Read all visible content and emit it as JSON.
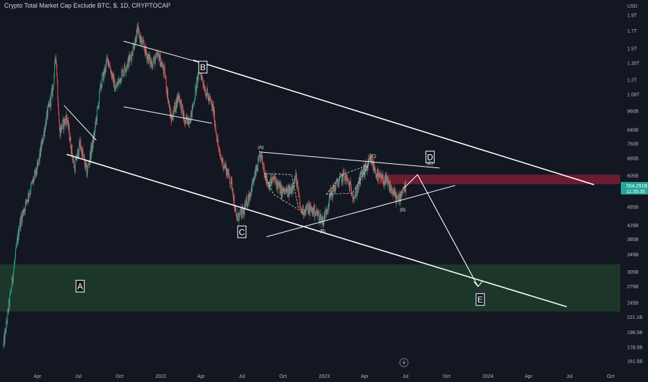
{
  "header": {
    "title": "Crypto Total Market Cap Exclude BTC, $, 1D, CRYPTOCAP"
  },
  "colors": {
    "background": "#131722",
    "bull_candle": "#26a69a",
    "bear_candle": "#ef5350",
    "red_zone": "#7a1f33",
    "green_zone": "#1e3d2a",
    "drawing": "#ffffff"
  },
  "chart_data": {
    "type": "candlestick",
    "y_scale": "log",
    "ylim": [
      155,
      2100
    ],
    "currency_label": "USD",
    "y_ticks": [
      {
        "label": "1.9T",
        "value": 1900
      },
      {
        "label": "1.7T",
        "value": 1700
      },
      {
        "label": "1.5T",
        "value": 1500
      },
      {
        "label": "1.35T",
        "value": 1350
      },
      {
        "label": "1.2T",
        "value": 1200
      },
      {
        "label": "1.08T",
        "value": 1080
      },
      {
        "label": "960B",
        "value": 960
      },
      {
        "label": "840B",
        "value": 840
      },
      {
        "label": "760B",
        "value": 760
      },
      {
        "label": "685B",
        "value": 685
      },
      {
        "label": "605B",
        "value": 605
      },
      {
        "label": "485B",
        "value": 485
      },
      {
        "label": "425B",
        "value": 425
      },
      {
        "label": "385B",
        "value": 385
      },
      {
        "label": "345B",
        "value": 345
      },
      {
        "label": "305B",
        "value": 305
      },
      {
        "label": "275B",
        "value": 275
      },
      {
        "label": "245B",
        "value": 245
      },
      {
        "label": "221.1B",
        "value": 221.1
      },
      {
        "label": "198.5B",
        "value": 198.5
      },
      {
        "label": "178.5B",
        "value": 178.5
      },
      {
        "label": "161.5B",
        "value": 161.5
      }
    ],
    "x_ticks": [
      {
        "label": "Apr",
        "date": "2021-04-01"
      },
      {
        "label": "Jul",
        "date": "2021-07-01"
      },
      {
        "label": "Oct",
        "date": "2021-10-01"
      },
      {
        "label": "2022",
        "date": "2022-01-01"
      },
      {
        "label": "Apr",
        "date": "2022-04-01"
      },
      {
        "label": "Jul",
        "date": "2022-07-01"
      },
      {
        "label": "Oct",
        "date": "2022-10-01"
      },
      {
        "label": "2023",
        "date": "2023-01-01"
      },
      {
        "label": "Apr",
        "date": "2023-04-01"
      },
      {
        "label": "Jul",
        "date": "2023-07-01"
      },
      {
        "label": "Oct",
        "date": "2023-10-01"
      },
      {
        "label": "2024",
        "date": "2024-01-01"
      },
      {
        "label": "Apr",
        "date": "2024-04-01"
      },
      {
        "label": "Jul",
        "date": "2024-07-01"
      },
      {
        "label": "Oct",
        "date": "2024-10-01"
      }
    ],
    "price_series": [
      [
        "2021-01-15",
        180
      ],
      [
        "2021-02-01",
        270
      ],
      [
        "2021-02-20",
        430
      ],
      [
        "2021-03-10",
        520
      ],
      [
        "2021-04-01",
        640
      ],
      [
        "2021-04-20",
        900
      ],
      [
        "2021-05-05",
        1120
      ],
      [
        "2021-05-12",
        1450
      ],
      [
        "2021-05-20",
        830
      ],
      [
        "2021-06-05",
        920
      ],
      [
        "2021-06-22",
        640
      ],
      [
        "2021-07-05",
        760
      ],
      [
        "2021-07-20",
        620
      ],
      [
        "2021-08-05",
        800
      ],
      [
        "2021-08-20",
        1150
      ],
      [
        "2021-09-05",
        1400
      ],
      [
        "2021-09-22",
        1120
      ],
      [
        "2021-10-05",
        1250
      ],
      [
        "2021-10-25",
        1400
      ],
      [
        "2021-11-10",
        1700
      ],
      [
        "2021-11-25",
        1500
      ],
      [
        "2021-12-10",
        1350
      ],
      [
        "2021-12-28",
        1420
      ],
      [
        "2022-01-10",
        1250
      ],
      [
        "2022-01-24",
        900
      ],
      [
        "2022-02-10",
        1080
      ],
      [
        "2022-02-24",
        880
      ],
      [
        "2022-03-10",
        930
      ],
      [
        "2022-03-28",
        1300
      ],
      [
        "2022-04-12",
        1100
      ],
      [
        "2022-04-28",
        970
      ],
      [
        "2022-05-12",
        700
      ],
      [
        "2022-05-28",
        630
      ],
      [
        "2022-06-10",
        560
      ],
      [
        "2022-06-18",
        445
      ],
      [
        "2022-07-05",
        470
      ],
      [
        "2022-07-20",
        540
      ],
      [
        "2022-08-12",
        700
      ],
      [
        "2022-08-28",
        570
      ],
      [
        "2022-09-12",
        590
      ],
      [
        "2022-09-28",
        540
      ],
      [
        "2022-10-15",
        540
      ],
      [
        "2022-10-30",
        600
      ],
      [
        "2022-11-09",
        470
      ],
      [
        "2022-11-25",
        480
      ],
      [
        "2022-12-10",
        470
      ],
      [
        "2022-12-30",
        440
      ],
      [
        "2023-01-15",
        530
      ],
      [
        "2023-02-01",
        580
      ],
      [
        "2023-02-15",
        610
      ],
      [
        "2023-03-10",
        520
      ],
      [
        "2023-03-25",
        610
      ],
      [
        "2023-04-15",
        675
      ],
      [
        "2023-05-01",
        600
      ],
      [
        "2023-05-20",
        580
      ],
      [
        "2023-06-10",
        520
      ],
      [
        "2023-06-15",
        505
      ],
      [
        "2023-06-25",
        555
      ],
      [
        "2023-07-02",
        554
      ]
    ],
    "last_price": {
      "label": "554.291B",
      "countdown": "11:35:35",
      "value": 554
    },
    "zones": [
      {
        "name": "resistance-zone",
        "color": "#7a1f33",
        "y_low": 570,
        "y_high": 610,
        "x_from": "2023-05-01"
      },
      {
        "name": "support-zone",
        "color": "#1e3d2a",
        "y_low": 230,
        "y_high": 322,
        "x_from": "2021-01-01"
      }
    ],
    "annotations": [
      {
        "label": "A",
        "size": "big",
        "date": "2021-07-05",
        "value": 275
      },
      {
        "label": "B",
        "size": "big",
        "date": "2022-04-05",
        "value": 1310
      },
      {
        "label": "C",
        "size": "big",
        "date": "2022-07-01",
        "value": 405
      },
      {
        "label": "D",
        "size": "big",
        "date": "2023-08-25",
        "value": 690
      },
      {
        "label": "E",
        "size": "big",
        "date": "2023-12-15",
        "value": 250
      },
      {
        "label": "(A)",
        "size": "small",
        "date": "2022-08-12",
        "value": 735
      },
      {
        "label": "(B)",
        "size": "small",
        "date": "2022-12-28",
        "value": 405
      },
      {
        "label": "(C)",
        "size": "small",
        "date": "2023-04-20",
        "value": 690
      },
      {
        "label": "(D)",
        "size": "small",
        "date": "2023-06-25",
        "value": 470
      },
      {
        "label": "(E)",
        "size": "small",
        "date": "2023-08-25",
        "value": 655
      }
    ]
  }
}
